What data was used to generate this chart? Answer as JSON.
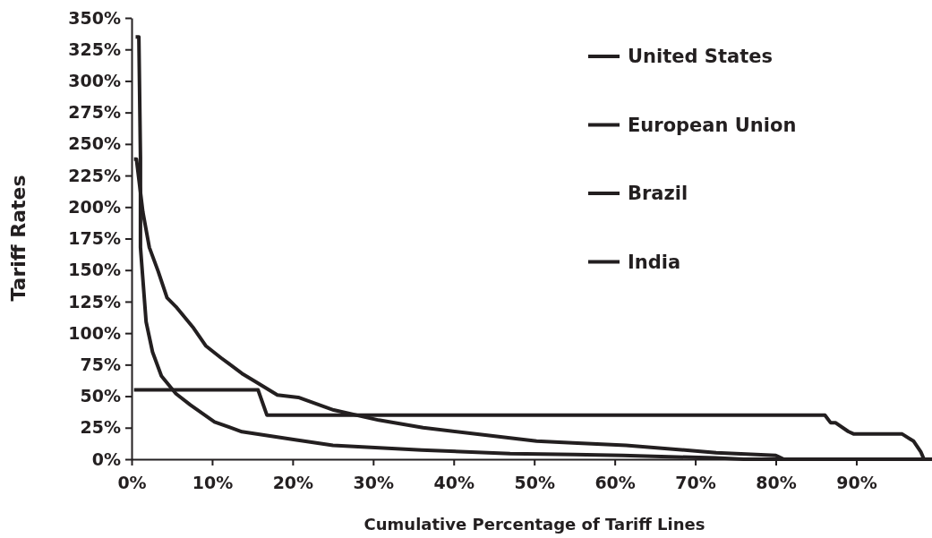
{
  "chart_data": {
    "type": "line",
    "xlabel": "Cumulative Percentage of Tariff Lines",
    "ylabel": "Tariff Rates",
    "xlim": [
      0,
      99.4
    ],
    "ylim": [
      0,
      350
    ],
    "xticks": [
      {
        "value": 0,
        "label": "0%"
      },
      {
        "value": 10,
        "label": "10%"
      },
      {
        "value": 20,
        "label": "20%"
      },
      {
        "value": 30,
        "label": "30%"
      },
      {
        "value": 40,
        "label": "40%"
      },
      {
        "value": 50,
        "label": "50%"
      },
      {
        "value": 60,
        "label": "60%"
      },
      {
        "value": 70,
        "label": "70%"
      },
      {
        "value": 80,
        "label": "80%"
      },
      {
        "value": 90,
        "label": "90%"
      }
    ],
    "yticks": [
      {
        "value": 0,
        "label": "0%"
      },
      {
        "value": 25,
        "label": "25%"
      },
      {
        "value": 50,
        "label": "50%"
      },
      {
        "value": 75,
        "label": "75%"
      },
      {
        "value": 100,
        "label": "100%"
      },
      {
        "value": 125,
        "label": "125%"
      },
      {
        "value": 150,
        "label": "150%"
      },
      {
        "value": 175,
        "label": "175%"
      },
      {
        "value": 200,
        "label": "200%"
      },
      {
        "value": 225,
        "label": "225%"
      },
      {
        "value": 250,
        "label": "250%"
      },
      {
        "value": 275,
        "label": "275%"
      },
      {
        "value": 300,
        "label": "300%"
      },
      {
        "value": 325,
        "label": "325%"
      },
      {
        "value": 350,
        "label": "350%"
      }
    ],
    "grid": false,
    "legend": "top right",
    "marker": "none",
    "line_style": "solid",
    "series": [
      {
        "name": "United States",
        "color": "#231f20",
        "x": [
          0.5,
          0.9,
          1.1,
          1.1,
          1.8,
          2.6,
          3.7,
          5.5,
          7.3,
          10.3,
          13.7,
          20.3,
          25,
          36,
          47,
          55,
          61,
          72.5,
          76,
          99.4
        ],
        "values": [
          335,
          335,
          239,
          168,
          109,
          85,
          66,
          52,
          43,
          29.6,
          21.8,
          15.5,
          11,
          7.3,
          4.5,
          3.8,
          3,
          1,
          0,
          0
        ]
      },
      {
        "name": "European Union",
        "color": "#231f20"
      },
      {
        "name": "Brazil",
        "color": "#231f20",
        "x": [
          0.3,
          15.7,
          16.8,
          86.1,
          86.8,
          87.4,
          89,
          89.7,
          95.7,
          97.1,
          98,
          98.4,
          99.4
        ],
        "values": [
          55,
          55,
          35,
          35,
          29,
          29,
          22,
          20,
          20,
          14.4,
          6,
          0,
          0
        ]
      },
      {
        "name": "India",
        "color": "#231f20",
        "x": [
          0.3,
          0.6,
          1.4,
          2.2,
          3.3,
          4.4,
          5.5,
          7.7,
          9.2,
          11.1,
          13.7,
          15.5,
          18.1,
          20.7,
          25.1,
          30.7,
          36.2,
          43.7,
          50.3,
          54.8,
          61.4,
          72.6,
          80,
          81,
          99.4
        ],
        "values": [
          238,
          238,
          196,
          168,
          149,
          128,
          121,
          104,
          90,
          80.4,
          68,
          61,
          51,
          49,
          39,
          31,
          25,
          19.4,
          14.4,
          13,
          11,
          5.2,
          3,
          0,
          0
        ]
      }
    ]
  }
}
